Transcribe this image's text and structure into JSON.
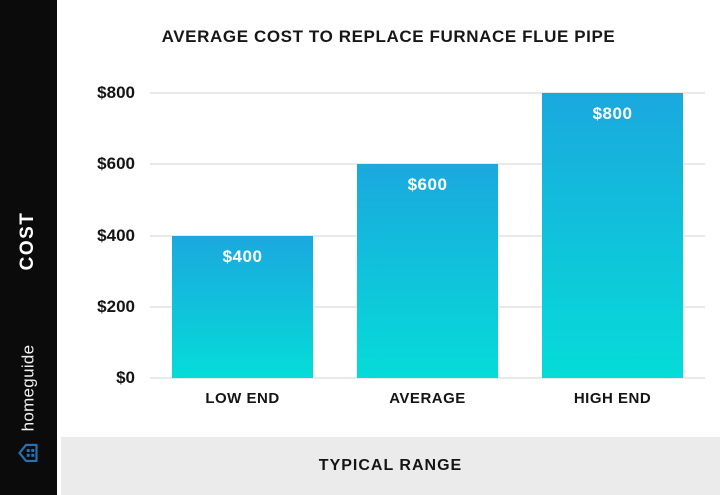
{
  "sidebar": {
    "axis_title": "COST",
    "brand": "homeguide",
    "brand_color": "#2272b5",
    "background": "#0b0b0b"
  },
  "chart_data": {
    "type": "bar",
    "title": "AVERAGE COST TO REPLACE FURNACE FLUE PIPE",
    "categories": [
      "LOW END",
      "AVERAGE",
      "HIGH END"
    ],
    "values": [
      400,
      600,
      800
    ],
    "value_labels": [
      "$400",
      "$600",
      "$800"
    ],
    "xlabel": "TYPICAL RANGE",
    "ylabel": "COST",
    "ylim": [
      0,
      800
    ],
    "yticks": [
      0,
      200,
      400,
      600,
      800
    ],
    "ytick_labels": [
      "$0",
      "$200",
      "$400",
      "$600",
      "$800"
    ],
    "grid": true,
    "legend": false,
    "bar_gradient_top": "#1ba8de",
    "bar_gradient_bottom": "#05dcd8"
  },
  "footer": {
    "label": "TYPICAL RANGE",
    "background": "#ebebeb"
  }
}
